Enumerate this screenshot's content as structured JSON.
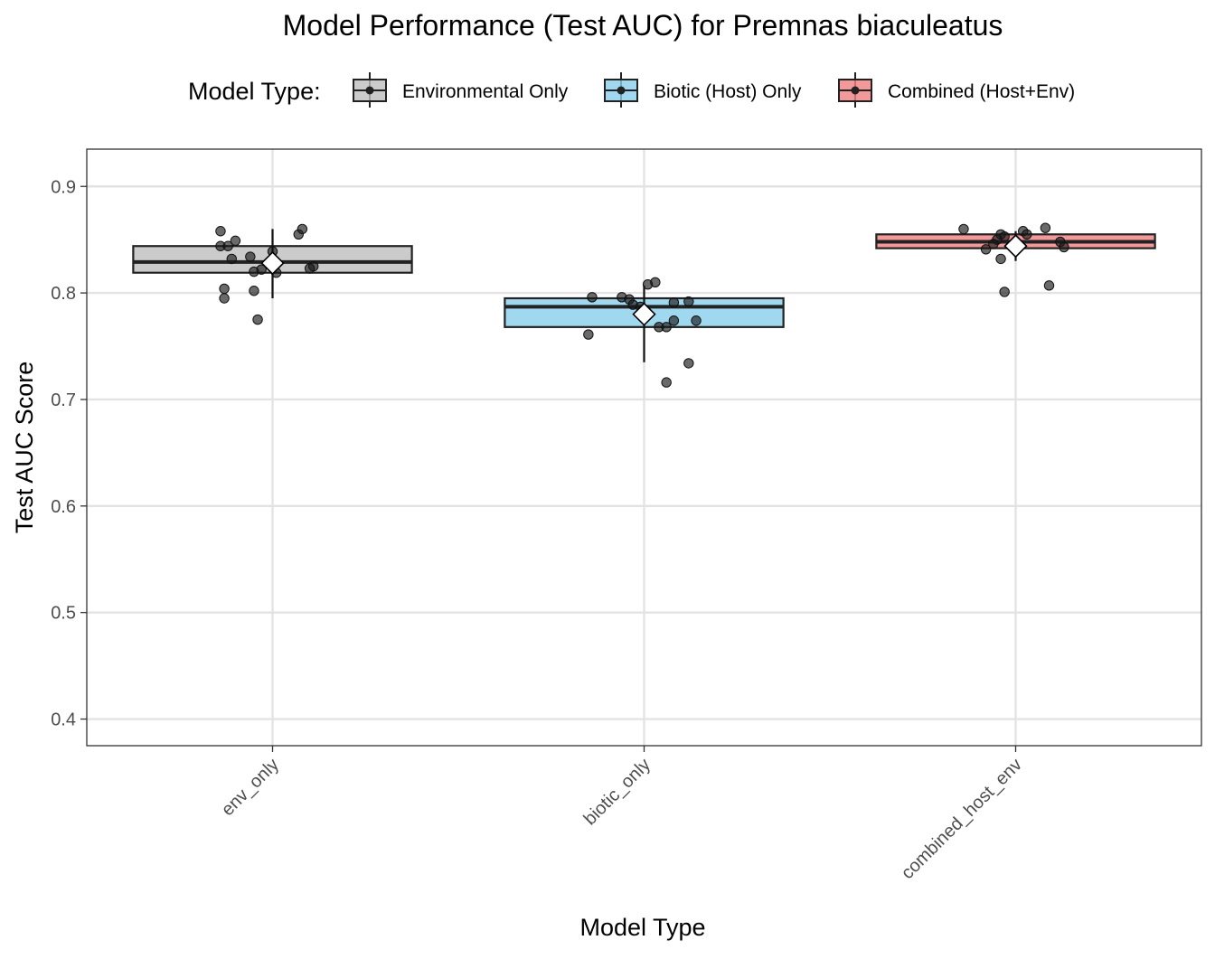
{
  "chart_data": {
    "type": "box",
    "title": "Model Performance (Test AUC) for Premnas biaculeatus",
    "xlabel": "Model Type",
    "ylabel": "Test AUC Score",
    "ylim": [
      0.375,
      0.935
    ],
    "yticks": [
      0.4,
      0.5,
      0.6,
      0.7,
      0.8,
      0.9
    ],
    "ytick_labels": [
      "0.4",
      "0.5",
      "0.6",
      "0.7",
      "0.8",
      "0.9"
    ],
    "grid": true,
    "legend": {
      "title": "Model Type:",
      "placement": "top",
      "entries": [
        "Environmental Only",
        "Biotic (Host) Only",
        "Combined (Host+Env)"
      ]
    },
    "categories": [
      "env_only",
      "biotic_only",
      "combined_host_env"
    ],
    "series": [
      {
        "name": "Environmental Only",
        "category": "env_only",
        "color": "#bebebe",
        "box": {
          "q1": 0.819,
          "median": 0.829,
          "q3": 0.844
        },
        "mean": 0.828,
        "mean_interval": [
          0.795,
          0.86
        ],
        "points": [
          {
            "x": -0.14,
            "y": 0.858
          },
          {
            "x": 0.07,
            "y": 0.855
          },
          {
            "x": 0.08,
            "y": 0.86
          },
          {
            "x": -0.1,
            "y": 0.849
          },
          {
            "x": -0.14,
            "y": 0.844
          },
          {
            "x": -0.12,
            "y": 0.844
          },
          {
            "x": -0.06,
            "y": 0.834
          },
          {
            "x": -0.11,
            "y": 0.832
          },
          {
            "x": 0.0,
            "y": 0.839
          },
          {
            "x": 0.11,
            "y": 0.825
          },
          {
            "x": 0.1,
            "y": 0.823
          },
          {
            "x": -0.05,
            "y": 0.82
          },
          {
            "x": -0.03,
            "y": 0.822
          },
          {
            "x": 0.01,
            "y": 0.819
          },
          {
            "x": -0.13,
            "y": 0.804
          },
          {
            "x": -0.05,
            "y": 0.802
          },
          {
            "x": -0.13,
            "y": 0.795
          },
          {
            "x": -0.04,
            "y": 0.775
          }
        ]
      },
      {
        "name": "Biotic (Host) Only",
        "category": "biotic_only",
        "color": "#87ceeb",
        "box": {
          "q1": 0.768,
          "median": 0.787,
          "q3": 0.795
        },
        "mean": 0.78,
        "mean_interval": [
          0.735,
          0.807
        ],
        "points": [
          {
            "x": -0.14,
            "y": 0.796
          },
          {
            "x": -0.06,
            "y": 0.796
          },
          {
            "x": -0.04,
            "y": 0.794
          },
          {
            "x": -0.03,
            "y": 0.789
          },
          {
            "x": 0.01,
            "y": 0.808
          },
          {
            "x": 0.03,
            "y": 0.81
          },
          {
            "x": 0.08,
            "y": 0.791
          },
          {
            "x": 0.12,
            "y": 0.792
          },
          {
            "x": 0.08,
            "y": 0.774
          },
          {
            "x": 0.14,
            "y": 0.774
          },
          {
            "x": 0.04,
            "y": 0.768
          },
          {
            "x": 0.06,
            "y": 0.768
          },
          {
            "x": -0.15,
            "y": 0.761
          },
          {
            "x": 0.12,
            "y": 0.734
          },
          {
            "x": 0.06,
            "y": 0.716
          },
          {
            "x": -0.01,
            "y": 0.787
          }
        ]
      },
      {
        "name": "Combined (Host+Env)",
        "category": "combined_host_env",
        "color": "#f08080",
        "box": {
          "q1": 0.842,
          "median": 0.848,
          "q3": 0.855
        },
        "mean": 0.844,
        "mean_interval": [
          0.83,
          0.858
        ],
        "points": [
          {
            "x": -0.14,
            "y": 0.86
          },
          {
            "x": 0.08,
            "y": 0.861
          },
          {
            "x": 0.02,
            "y": 0.858
          },
          {
            "x": 0.03,
            "y": 0.855
          },
          {
            "x": -0.04,
            "y": 0.855
          },
          {
            "x": -0.03,
            "y": 0.853
          },
          {
            "x": -0.05,
            "y": 0.85
          },
          {
            "x": 0.12,
            "y": 0.848
          },
          {
            "x": -0.06,
            "y": 0.846
          },
          {
            "x": 0.13,
            "y": 0.843
          },
          {
            "x": -0.08,
            "y": 0.841
          },
          {
            "x": -0.04,
            "y": 0.832
          },
          {
            "x": 0.09,
            "y": 0.807
          },
          {
            "x": -0.03,
            "y": 0.801
          }
        ]
      }
    ]
  }
}
